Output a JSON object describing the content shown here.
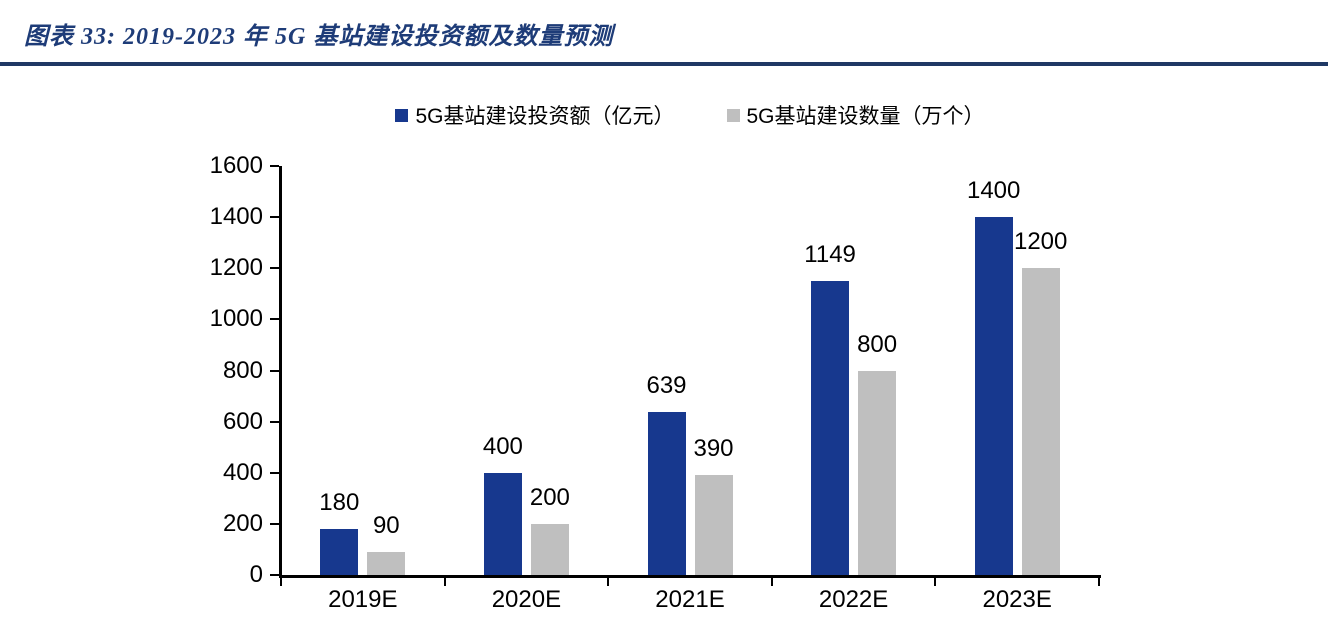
{
  "figure": {
    "title": "图表 33: 2019-2023 年 5G 基站建设投资额及数量预测",
    "title_color": "#1e3c78",
    "rule_color": "#1f3864"
  },
  "chart_data": {
    "type": "bar",
    "title": "",
    "categories": [
      "2019E",
      "2020E",
      "2021E",
      "2022E",
      "2023E"
    ],
    "series": [
      {
        "name": "5G基站建设投资额（亿元）",
        "color": "#17388E",
        "values": [
          180,
          400,
          639,
          1149,
          1400
        ]
      },
      {
        "name": "5G基站建设数量（万个）",
        "color": "#BFBFBF",
        "values": [
          90,
          200,
          390,
          800,
          1200
        ]
      }
    ],
    "xlabel": "",
    "ylabel": "",
    "ylim": [
      0,
      1600
    ],
    "yticks": [
      0,
      200,
      400,
      600,
      800,
      1000,
      1200,
      1400,
      1600
    ],
    "grid": false,
    "legend_position": "top-center",
    "data_labels": true,
    "axis_color": "#000000"
  }
}
